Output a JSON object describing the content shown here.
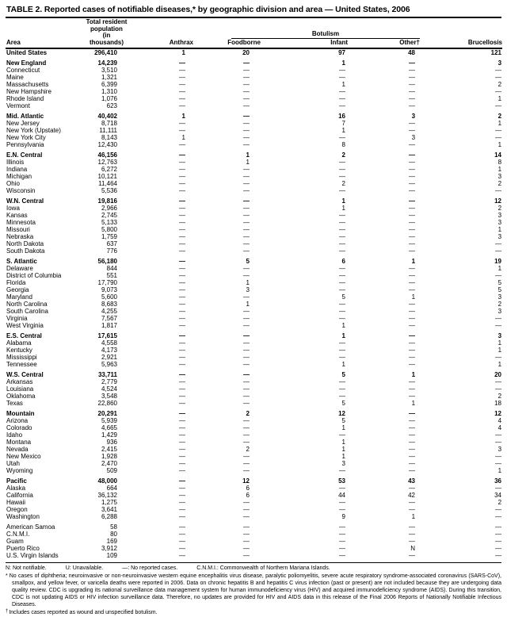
{
  "title": "TABLE 2. Reported cases of notifiable diseases,* by geographic division and area — United States, 2006",
  "table": {
    "columns": {
      "area": "Area",
      "population_lines": [
        "Total resident",
        "population",
        "(in thousands)"
      ],
      "anthrax": "Anthrax",
      "botulism_group": "Botulism",
      "foodborne": "Foodborne",
      "infant": "Infant",
      "other": "Other†",
      "brucellosis": "Brucellosis"
    },
    "rows": [
      {
        "area": "United States",
        "population": "296,410",
        "anthrax": "1",
        "foodborne": "20",
        "infant": "97",
        "other": "48",
        "brucellosis": "121",
        "bold": true,
        "section_start": false
      },
      {
        "area": "New England",
        "population": "14,239",
        "anthrax": "—",
        "foodborne": "—",
        "infant": "1",
        "other": "—",
        "brucellosis": "3",
        "bold": true,
        "section_start": true
      },
      {
        "area": "Connecticut",
        "population": "3,510",
        "anthrax": "—",
        "foodborne": "—",
        "infant": "—",
        "other": "—",
        "brucellosis": "—",
        "bold": false,
        "section_start": false
      },
      {
        "area": "Maine",
        "population": "1,321",
        "anthrax": "—",
        "foodborne": "—",
        "infant": "—",
        "other": "—",
        "brucellosis": "—",
        "bold": false,
        "section_start": false
      },
      {
        "area": "Massachusetts",
        "population": "6,399",
        "anthrax": "—",
        "foodborne": "—",
        "infant": "1",
        "other": "—",
        "brucellosis": "2",
        "bold": false,
        "section_start": false
      },
      {
        "area": "New Hampshire",
        "population": "1,310",
        "anthrax": "—",
        "foodborne": "—",
        "infant": "—",
        "other": "—",
        "brucellosis": "—",
        "bold": false,
        "section_start": false
      },
      {
        "area": "Rhode Island",
        "population": "1,076",
        "anthrax": "—",
        "foodborne": "—",
        "infant": "—",
        "other": "—",
        "brucellosis": "1",
        "bold": false,
        "section_start": false
      },
      {
        "area": "Vermont",
        "population": "623",
        "anthrax": "—",
        "foodborne": "—",
        "infant": "—",
        "other": "—",
        "brucellosis": "—",
        "bold": false,
        "section_start": false
      },
      {
        "area": "Mid. Atlantic",
        "population": "40,402",
        "anthrax": "1",
        "foodborne": "—",
        "infant": "16",
        "other": "3",
        "brucellosis": "2",
        "bold": true,
        "section_start": true
      },
      {
        "area": "New Jersey",
        "population": "8,718",
        "anthrax": "—",
        "foodborne": "—",
        "infant": "7",
        "other": "—",
        "brucellosis": "1",
        "bold": false,
        "section_start": false
      },
      {
        "area": "New York (Upstate)",
        "population": "11,111",
        "anthrax": "—",
        "foodborne": "—",
        "infant": "1",
        "other": "—",
        "brucellosis": "—",
        "bold": false,
        "section_start": false
      },
      {
        "area": "New York City",
        "population": "8,143",
        "anthrax": "1",
        "foodborne": "—",
        "infant": "—",
        "other": "3",
        "brucellosis": "—",
        "bold": false,
        "section_start": false
      },
      {
        "area": "Pennsylvania",
        "population": "12,430",
        "anthrax": "—",
        "foodborne": "—",
        "infant": "8",
        "other": "—",
        "brucellosis": "1",
        "bold": false,
        "section_start": false
      },
      {
        "area": "E.N. Central",
        "population": "46,156",
        "anthrax": "—",
        "foodborne": "1",
        "infant": "2",
        "other": "—",
        "brucellosis": "14",
        "bold": true,
        "section_start": true
      },
      {
        "area": "Illinois",
        "population": "12,763",
        "anthrax": "—",
        "foodborne": "1",
        "infant": "—",
        "other": "—",
        "brucellosis": "8",
        "bold": false,
        "section_start": false
      },
      {
        "area": "Indiana",
        "population": "6,272",
        "anthrax": "—",
        "foodborne": "—",
        "infant": "—",
        "other": "—",
        "brucellosis": "1",
        "bold": false,
        "section_start": false
      },
      {
        "area": "Michigan",
        "population": "10,121",
        "anthrax": "—",
        "foodborne": "—",
        "infant": "—",
        "other": "—",
        "brucellosis": "3",
        "bold": false,
        "section_start": false
      },
      {
        "area": "Ohio",
        "population": "11,464",
        "anthrax": "—",
        "foodborne": "—",
        "infant": "2",
        "other": "—",
        "brucellosis": "2",
        "bold": false,
        "section_start": false
      },
      {
        "area": "Wisconsin",
        "population": "5,536",
        "anthrax": "—",
        "foodborne": "—",
        "infant": "—",
        "other": "—",
        "brucellosis": "—",
        "bold": false,
        "section_start": false
      },
      {
        "area": "W.N. Central",
        "population": "19,816",
        "anthrax": "—",
        "foodborne": "—",
        "infant": "1",
        "other": "—",
        "brucellosis": "12",
        "bold": true,
        "section_start": true
      },
      {
        "area": "Iowa",
        "population": "2,966",
        "anthrax": "—",
        "foodborne": "—",
        "infant": "1",
        "other": "—",
        "brucellosis": "2",
        "bold": false,
        "section_start": false
      },
      {
        "area": "Kansas",
        "population": "2,745",
        "anthrax": "—",
        "foodborne": "—",
        "infant": "—",
        "other": "—",
        "brucellosis": "3",
        "bold": false,
        "section_start": false
      },
      {
        "area": "Minnesota",
        "population": "5,133",
        "anthrax": "—",
        "foodborne": "—",
        "infant": "—",
        "other": "—",
        "brucellosis": "3",
        "bold": false,
        "section_start": false
      },
      {
        "area": "Missouri",
        "population": "5,800",
        "anthrax": "—",
        "foodborne": "—",
        "infant": "—",
        "other": "—",
        "brucellosis": "1",
        "bold": false,
        "section_start": false
      },
      {
        "area": "Nebraska",
        "population": "1,759",
        "anthrax": "—",
        "foodborne": "—",
        "infant": "—",
        "other": "—",
        "brucellosis": "3",
        "bold": false,
        "section_start": false
      },
      {
        "area": "North Dakota",
        "population": "637",
        "anthrax": "—",
        "foodborne": "—",
        "infant": "—",
        "other": "—",
        "brucellosis": "—",
        "bold": false,
        "section_start": false
      },
      {
        "area": "South Dakota",
        "population": "776",
        "anthrax": "—",
        "foodborne": "—",
        "infant": "—",
        "other": "—",
        "brucellosis": "—",
        "bold": false,
        "section_start": false
      },
      {
        "area": "S. Atlantic",
        "population": "56,180",
        "anthrax": "—",
        "foodborne": "5",
        "infant": "6",
        "other": "1",
        "brucellosis": "19",
        "bold": true,
        "section_start": true
      },
      {
        "area": "Delaware",
        "population": "844",
        "anthrax": "—",
        "foodborne": "—",
        "infant": "—",
        "other": "—",
        "brucellosis": "1",
        "bold": false,
        "section_start": false
      },
      {
        "area": "District of Columbia",
        "population": "551",
        "anthrax": "—",
        "foodborne": "—",
        "infant": "—",
        "other": "—",
        "brucellosis": "—",
        "bold": false,
        "section_start": false
      },
      {
        "area": "Florida",
        "population": "17,790",
        "anthrax": "—",
        "foodborne": "1",
        "infant": "—",
        "other": "—",
        "brucellosis": "5",
        "bold": false,
        "section_start": false
      },
      {
        "area": "Georgia",
        "population": "9,073",
        "anthrax": "—",
        "foodborne": "3",
        "infant": "—",
        "other": "—",
        "brucellosis": "5",
        "bold": false,
        "section_start": false
      },
      {
        "area": "Maryland",
        "population": "5,600",
        "anthrax": "—",
        "foodborne": "—",
        "infant": "5",
        "other": "1",
        "brucellosis": "3",
        "bold": false,
        "section_start": false
      },
      {
        "area": "North Carolina",
        "population": "8,683",
        "anthrax": "—",
        "foodborne": "1",
        "infant": "—",
        "other": "—",
        "brucellosis": "2",
        "bold": false,
        "section_start": false
      },
      {
        "area": "South Carolina",
        "population": "4,255",
        "anthrax": "—",
        "foodborne": "—",
        "infant": "—",
        "other": "—",
        "brucellosis": "3",
        "bold": false,
        "section_start": false
      },
      {
        "area": "Virginia",
        "population": "7,567",
        "anthrax": "—",
        "foodborne": "—",
        "infant": "—",
        "other": "—",
        "brucellosis": "—",
        "bold": false,
        "section_start": false
      },
      {
        "area": "West Virginia",
        "population": "1,817",
        "anthrax": "—",
        "foodborne": "—",
        "infant": "1",
        "other": "—",
        "brucellosis": "—",
        "bold": false,
        "section_start": false
      },
      {
        "area": "E.S. Central",
        "population": "17,615",
        "anthrax": "—",
        "foodborne": "—",
        "infant": "1",
        "other": "—",
        "brucellosis": "3",
        "bold": true,
        "section_start": true
      },
      {
        "area": "Alabama",
        "population": "4,558",
        "anthrax": "—",
        "foodborne": "—",
        "infant": "—",
        "other": "—",
        "brucellosis": "1",
        "bold": false,
        "section_start": false
      },
      {
        "area": "Kentucky",
        "population": "4,173",
        "anthrax": "—",
        "foodborne": "—",
        "infant": "—",
        "other": "—",
        "brucellosis": "1",
        "bold": false,
        "section_start": false
      },
      {
        "area": "Mississippi",
        "population": "2,921",
        "anthrax": "—",
        "foodborne": "—",
        "infant": "—",
        "other": "—",
        "brucellosis": "—",
        "bold": false,
        "section_start": false
      },
      {
        "area": "Tennessee",
        "population": "5,963",
        "anthrax": "—",
        "foodborne": "—",
        "infant": "1",
        "other": "—",
        "brucellosis": "1",
        "bold": false,
        "section_start": false
      },
      {
        "area": "W.S. Central",
        "population": "33,711",
        "anthrax": "—",
        "foodborne": "—",
        "infant": "5",
        "other": "1",
        "brucellosis": "20",
        "bold": true,
        "section_start": true
      },
      {
        "area": "Arkansas",
        "population": "2,779",
        "anthrax": "—",
        "foodborne": "—",
        "infant": "—",
        "other": "—",
        "brucellosis": "—",
        "bold": false,
        "section_start": false
      },
      {
        "area": "Louisiana",
        "population": "4,524",
        "anthrax": "—",
        "foodborne": "—",
        "infant": "—",
        "other": "—",
        "brucellosis": "—",
        "bold": false,
        "section_start": false
      },
      {
        "area": "Oklahoma",
        "population": "3,548",
        "anthrax": "—",
        "foodborne": "—",
        "infant": "—",
        "other": "—",
        "brucellosis": "2",
        "bold": false,
        "section_start": false
      },
      {
        "area": "Texas",
        "population": "22,860",
        "anthrax": "—",
        "foodborne": "—",
        "infant": "5",
        "other": "1",
        "brucellosis": "18",
        "bold": false,
        "section_start": false
      },
      {
        "area": "Mountain",
        "population": "20,291",
        "anthrax": "—",
        "foodborne": "2",
        "infant": "12",
        "other": "—",
        "brucellosis": "12",
        "bold": true,
        "section_start": true
      },
      {
        "area": "Arizona",
        "population": "5,939",
        "anthrax": "—",
        "foodborne": "—",
        "infant": "5",
        "other": "—",
        "brucellosis": "4",
        "bold": false,
        "section_start": false
      },
      {
        "area": "Colorado",
        "population": "4,665",
        "anthrax": "—",
        "foodborne": "—",
        "infant": "1",
        "other": "—",
        "brucellosis": "4",
        "bold": false,
        "section_start": false
      },
      {
        "area": "Idaho",
        "population": "1,429",
        "anthrax": "—",
        "foodborne": "—",
        "infant": "—",
        "other": "—",
        "brucellosis": "—",
        "bold": false,
        "section_start": false
      },
      {
        "area": "Montana",
        "population": "936",
        "anthrax": "—",
        "foodborne": "—",
        "infant": "1",
        "other": "—",
        "brucellosis": "—",
        "bold": false,
        "section_start": false
      },
      {
        "area": "Nevada",
        "population": "2,415",
        "anthrax": "—",
        "foodborne": "2",
        "infant": "1",
        "other": "—",
        "brucellosis": "3",
        "bold": false,
        "section_start": false
      },
      {
        "area": "New Mexico",
        "population": "1,928",
        "anthrax": "—",
        "foodborne": "—",
        "infant": "1",
        "other": "—",
        "brucellosis": "—",
        "bold": false,
        "section_start": false
      },
      {
        "area": "Utah",
        "population": "2,470",
        "anthrax": "—",
        "foodborne": "—",
        "infant": "3",
        "other": "—",
        "brucellosis": "—",
        "bold": false,
        "section_start": false
      },
      {
        "area": "Wyoming",
        "population": "509",
        "anthrax": "—",
        "foodborne": "—",
        "infant": "—",
        "other": "—",
        "brucellosis": "1",
        "bold": false,
        "section_start": false
      },
      {
        "area": "Pacific",
        "population": "48,000",
        "anthrax": "—",
        "foodborne": "12",
        "infant": "53",
        "other": "43",
        "brucellosis": "36",
        "bold": true,
        "section_start": true
      },
      {
        "area": "Alaska",
        "population": "664",
        "anthrax": "—",
        "foodborne": "6",
        "infant": "—",
        "other": "—",
        "brucellosis": "—",
        "bold": false,
        "section_start": false
      },
      {
        "area": "California",
        "population": "36,132",
        "anthrax": "—",
        "foodborne": "6",
        "infant": "44",
        "other": "42",
        "brucellosis": "34",
        "bold": false,
        "section_start": false
      },
      {
        "area": "Hawaii",
        "population": "1,275",
        "anthrax": "—",
        "foodborne": "—",
        "infant": "—",
        "other": "—",
        "brucellosis": "2",
        "bold": false,
        "section_start": false
      },
      {
        "area": "Oregon",
        "population": "3,641",
        "anthrax": "—",
        "foodborne": "—",
        "infant": "—",
        "other": "—",
        "brucellosis": "—",
        "bold": false,
        "section_start": false
      },
      {
        "area": "Washington",
        "population": "6,288",
        "anthrax": "—",
        "foodborne": "—",
        "infant": "9",
        "other": "1",
        "brucellosis": "—",
        "bold": false,
        "section_start": false
      },
      {
        "area": "American Samoa",
        "population": "58",
        "anthrax": "—",
        "foodborne": "—",
        "infant": "—",
        "other": "—",
        "brucellosis": "—",
        "bold": false,
        "section_start": true
      },
      {
        "area": "C.N.M.I.",
        "population": "80",
        "anthrax": "—",
        "foodborne": "—",
        "infant": "—",
        "other": "—",
        "brucellosis": "—",
        "bold": false,
        "section_start": false
      },
      {
        "area": "Guam",
        "population": "169",
        "anthrax": "—",
        "foodborne": "—",
        "infant": "—",
        "other": "—",
        "brucellosis": "—",
        "bold": false,
        "section_start": false
      },
      {
        "area": "Puerto Rico",
        "population": "3,912",
        "anthrax": "—",
        "foodborne": "—",
        "infant": "—",
        "other": "N",
        "brucellosis": "—",
        "bold": false,
        "section_start": false
      },
      {
        "area": "U.S. Virgin Islands",
        "population": "109",
        "anthrax": "—",
        "foodborne": "—",
        "infant": "—",
        "other": "—",
        "brucellosis": "—",
        "bold": false,
        "section_start": false
      }
    ]
  },
  "footnotes": {
    "legend": [
      "N: Not notifiable.",
      "U: Unavailable.",
      "—: No reported cases.",
      "C.N.M.I.: Commonwealth of Northern Mariana Islands."
    ],
    "star": {
      "marker": "*",
      "text": "No cases of diphtheria; neuroinvasive or non-neuroinvasive western equine encephalitis virus disease, paralytic poliomyelitis, severe acute respiratory syndrome-associated coronavirus (SARS-CoV), smallpox, and yellow fever, or varicella deaths were reported in 2006. Data on chronic hepatitis B and hepatitis C virus infection (past or present) are not included because they are undergoing data quality review. CDC is upgrading its national surveillance data management system for human immunodeficiency virus (HIV) and acquired immunodeficiency syndrome (AIDS). During this transition, CDC is not updating AIDS or HIV infection surveillance data. Therefore, no updates are provided for HIV and AIDS data in this release of the Final 2006 Reports of Nationally Notifiable Infectious Diseases.",
      "dagger_marker": "†"
    },
    "dagger": {
      "marker": "†",
      "text": "Includes cases reported as wound and unspecified botulism."
    }
  }
}
